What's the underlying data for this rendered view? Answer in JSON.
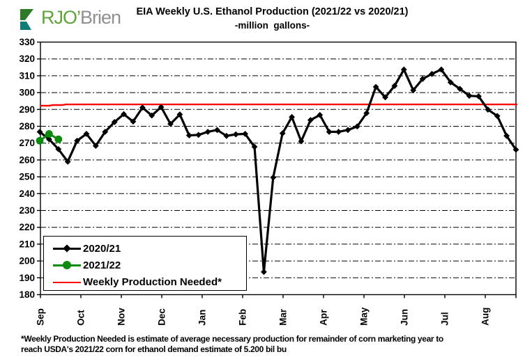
{
  "logo": {
    "text_primary": "RJO’",
    "text_secondary": "Brien",
    "icon_green": "#2e7a28",
    "icon_teal": "#0f7d74"
  },
  "header": {
    "title": "EIA Weekly U.S. Ethanol Production (2021/22 vs 2020/21)",
    "subtitle": "-million  gallons-"
  },
  "footnote": {
    "line1": "*Weekly Production Needed is estimate of average necessary production for remainder of corn marketing year to",
    "line2": "reach USDA's 2021/22 corn for ethanol demand estimate of 5.200 bil bu"
  },
  "chart_data": {
    "type": "line",
    "units": "million gallons per week",
    "ylim": [
      180,
      330
    ],
    "ytick_step": 10,
    "weeks": 52,
    "x_month_labels": [
      "Sep",
      "Oct",
      "Nov",
      "Dec",
      "Jan",
      "Feb",
      "Mar",
      "Apr",
      "May",
      "Jun",
      "Jul",
      "Aug"
    ],
    "grid": "horizontal-dashed",
    "legend_position": "inside-bottom-left",
    "colors": {
      "series_2020_21": "#000000",
      "series_2021_22": "#0b8a0b",
      "needed_line": "#ff0000"
    },
    "series": [
      {
        "name": "2020/21",
        "color": "#000000",
        "marker": "diamond",
        "values": [
          276.7,
          272.3,
          266.4,
          259.0,
          271.4,
          275.5,
          268.4,
          276.7,
          282.5,
          287.2,
          282.8,
          291.1,
          286.4,
          291.4,
          281.4,
          287.0,
          274.6,
          274.9,
          276.7,
          277.8,
          274.3,
          275.2,
          275.5,
          267.8,
          193.5,
          249.6,
          275.8,
          285.5,
          271.1,
          283.7,
          286.7,
          276.7,
          276.7,
          277.8,
          279.9,
          287.8,
          303.4,
          297.2,
          304.0,
          313.7,
          301.4,
          308.1,
          311.1,
          313.7,
          306.1,
          302.2,
          298.1,
          297.8,
          289.9,
          286.1,
          274.3,
          266.1
        ]
      },
      {
        "name": "2021/22",
        "color": "#0b8a0b",
        "marker": "circle",
        "values": [
          271.4,
          275.5,
          272.3
        ]
      },
      {
        "name": "Weekly Production Needed*",
        "color": "#ff0000",
        "marker": "none",
        "steps": [
          {
            "week": 0,
            "value": 292.2
          },
          {
            "week": 1,
            "value": 292.2
          },
          {
            "week": 1.4,
            "value": 292.6
          },
          {
            "week": 2.4,
            "value": 292.6
          },
          {
            "week": 2.8,
            "value": 293.0
          },
          {
            "week": 51,
            "value": 293.0
          }
        ]
      }
    ]
  }
}
